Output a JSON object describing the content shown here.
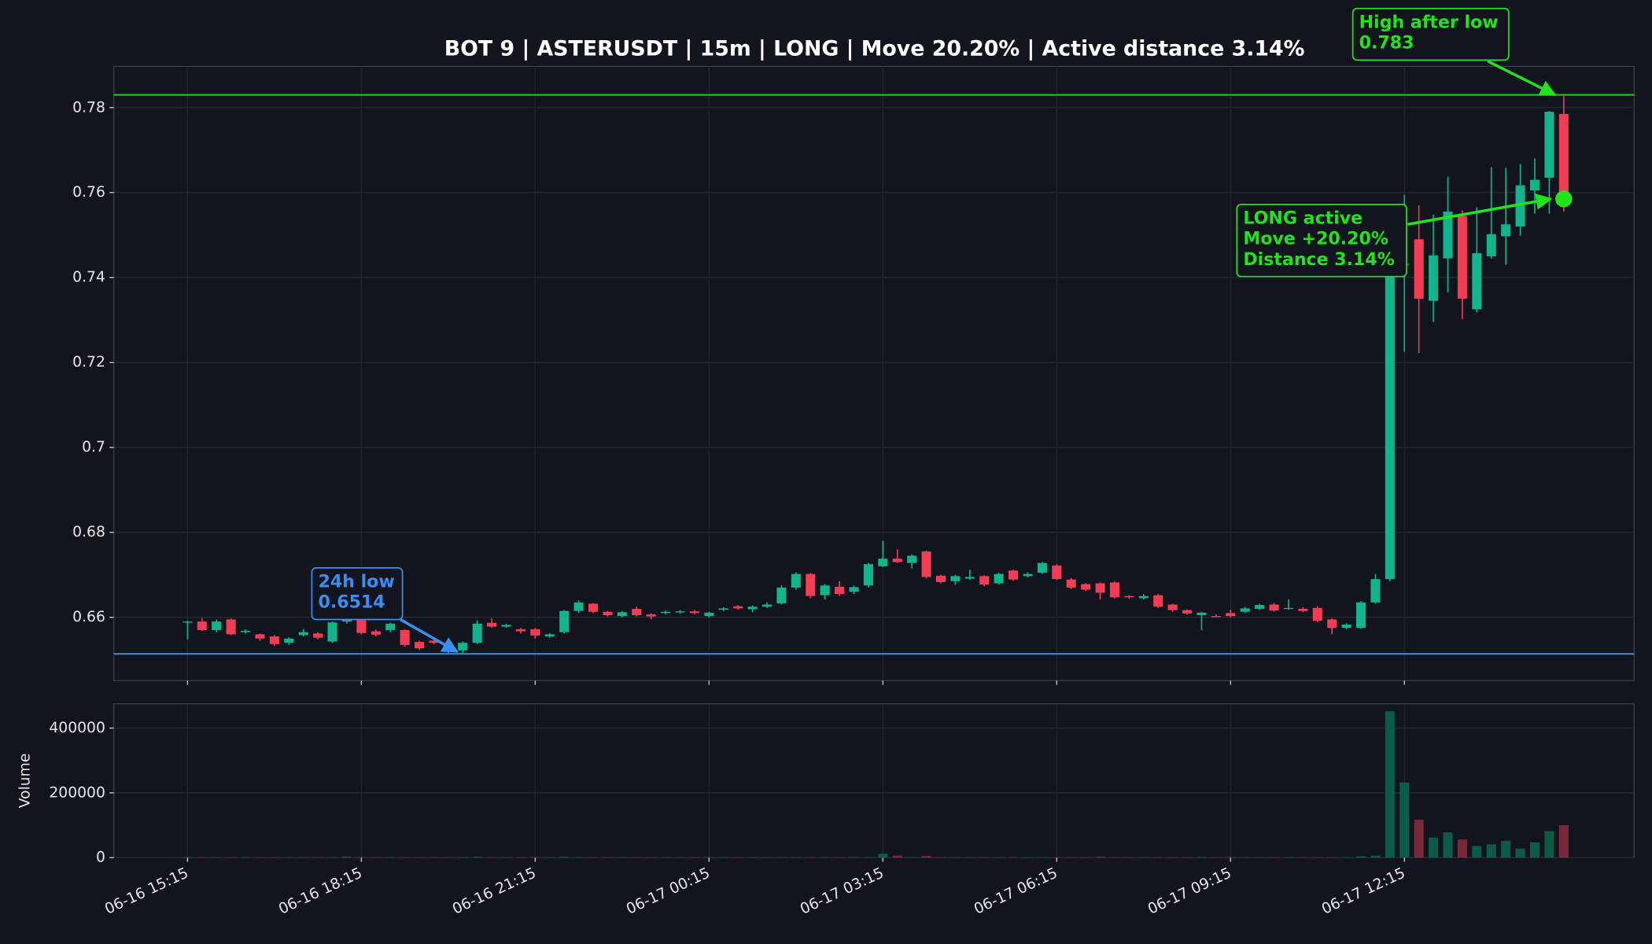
{
  "chart_data": {
    "type": "candlestick",
    "title": "BOT 9 | ASTERUSDT | 15m | LONG | Move 20.20% | Active distance 3.14%",
    "categories": [
      "06-16 15:15",
      null,
      null,
      null,
      null,
      null,
      null,
      null,
      null,
      null,
      null,
      null,
      "06-16 18:15",
      null,
      null,
      null,
      null,
      null,
      null,
      null,
      null,
      null,
      null,
      null,
      "06-16 21:15",
      null,
      null,
      null,
      null,
      null,
      null,
      null,
      null,
      null,
      null,
      null,
      "06-17 00:15",
      null,
      null,
      null,
      null,
      null,
      null,
      null,
      null,
      null,
      null,
      null,
      "06-17 03:15",
      null,
      null,
      null,
      null,
      null,
      null,
      null,
      null,
      null,
      null,
      null,
      "06-17 06:15",
      null,
      null,
      null,
      null,
      null,
      null,
      null,
      null,
      null,
      null,
      null,
      "06-17 09:15",
      null,
      null,
      null,
      null,
      null,
      null,
      null,
      null,
      null,
      null,
      null,
      "06-17 12:15",
      null,
      null,
      null,
      null,
      null,
      null,
      null,
      null,
      null,
      null,
      null
    ],
    "open": [
      0.659,
      0.659,
      0.657,
      0.6595,
      0.6565,
      0.656,
      0.6555,
      0.654,
      0.6558,
      0.6562,
      0.6543,
      0.659,
      0.66,
      0.6567,
      0.657,
      0.657,
      0.6542,
      0.6545,
      0.6537,
      0.6522,
      0.654,
      0.6587,
      0.6578,
      0.6572,
      0.6572,
      0.6555,
      0.6565,
      0.6615,
      0.6632,
      0.6613,
      0.6603,
      0.662,
      0.6607,
      0.661,
      0.6612,
      0.6614,
      0.6603,
      0.6618,
      0.6626,
      0.6619,
      0.6625,
      0.6633,
      0.667,
      0.6702,
      0.6652,
      0.6672,
      0.666,
      0.6675,
      0.672,
      0.6738,
      0.6728,
      0.6755,
      0.6698,
      0.6685,
      0.6691,
      0.6697,
      0.668,
      0.671,
      0.6697,
      0.6705,
      0.6722,
      0.6689,
      0.6678,
      0.668,
      0.6682,
      0.665,
      0.6645,
      0.6652,
      0.663,
      0.6617,
      0.6605,
      0.6603,
      0.661,
      0.6613,
      0.662,
      0.663,
      0.662,
      0.662,
      0.6622,
      0.6595,
      0.6575,
      0.6575,
      0.6635,
      0.669,
      0.743,
      0.749,
      0.7345,
      0.7445,
      0.7545,
      0.7325,
      0.745,
      0.7497,
      0.752,
      0.7605,
      0.7635,
      0.7785
    ],
    "high": [
      0.6592,
      0.6598,
      0.6595,
      0.6597,
      0.6572,
      0.6562,
      0.6558,
      0.6553,
      0.6572,
      0.6565,
      0.659,
      0.6601,
      0.6602,
      0.6571,
      0.6587,
      0.6572,
      0.6545,
      0.655,
      0.6538,
      0.6543,
      0.6593,
      0.6598,
      0.6585,
      0.6575,
      0.6575,
      0.6563,
      0.6617,
      0.664,
      0.6634,
      0.6615,
      0.6615,
      0.6625,
      0.6609,
      0.6616,
      0.6617,
      0.6617,
      0.6613,
      0.6624,
      0.6629,
      0.6628,
      0.6635,
      0.6675,
      0.6706,
      0.6704,
      0.6678,
      0.6685,
      0.6675,
      0.6728,
      0.678,
      0.676,
      0.6748,
      0.6757,
      0.67,
      0.67,
      0.6712,
      0.6699,
      0.6705,
      0.6712,
      0.6706,
      0.673,
      0.6725,
      0.6692,
      0.668,
      0.6682,
      0.6685,
      0.6652,
      0.6655,
      0.6655,
      0.6632,
      0.6619,
      0.6613,
      0.6607,
      0.6618,
      0.6625,
      0.6632,
      0.6634,
      0.6642,
      0.6624,
      0.6626,
      0.6597,
      0.6586,
      0.6638,
      0.6702,
      0.749,
      0.7595,
      0.757,
      0.7548,
      0.7637,
      0.7558,
      0.7565,
      0.766,
      0.7658,
      0.7667,
      0.768,
      0.7792,
      0.783
    ],
    "low": [
      0.6548,
      0.6568,
      0.6565,
      0.6558,
      0.6562,
      0.6545,
      0.6532,
      0.6535,
      0.6555,
      0.6548,
      0.654,
      0.6585,
      0.656,
      0.6555,
      0.6565,
      0.6531,
      0.6523,
      0.6536,
      0.6514,
      0.6516,
      0.6537,
      0.6575,
      0.6575,
      0.6562,
      0.655,
      0.6552,
      0.6562,
      0.661,
      0.661,
      0.6602,
      0.66,
      0.6602,
      0.6595,
      0.6607,
      0.6609,
      0.6607,
      0.66,
      0.6615,
      0.6618,
      0.6612,
      0.6622,
      0.663,
      0.6665,
      0.6645,
      0.6642,
      0.665,
      0.6655,
      0.667,
      0.6718,
      0.6728,
      0.6715,
      0.6692,
      0.668,
      0.6677,
      0.6688,
      0.6673,
      0.6677,
      0.6686,
      0.6694,
      0.6702,
      0.6688,
      0.6667,
      0.6662,
      0.6642,
      0.6644,
      0.6644,
      0.6642,
      0.6622,
      0.6613,
      0.6606,
      0.657,
      0.66,
      0.66,
      0.661,
      0.6617,
      0.6613,
      0.6618,
      0.6612,
      0.6589,
      0.656,
      0.6572,
      0.6573,
      0.6632,
      0.6685,
      0.7225,
      0.7222,
      0.7295,
      0.7365,
      0.7302,
      0.7318,
      0.7445,
      0.743,
      0.7498,
      0.755,
      0.755,
      0.7555
    ],
    "close": [
      0.659,
      0.657,
      0.659,
      0.656,
      0.6568,
      0.655,
      0.6537,
      0.655,
      0.6565,
      0.6552,
      0.6588,
      0.6597,
      0.6563,
      0.6559,
      0.6585,
      0.6535,
      0.6527,
      0.654,
      0.652,
      0.654,
      0.6585,
      0.6578,
      0.6582,
      0.6567,
      0.6557,
      0.656,
      0.6615,
      0.6635,
      0.6613,
      0.6605,
      0.6612,
      0.6605,
      0.6602,
      0.6613,
      0.6614,
      0.661,
      0.6611,
      0.6621,
      0.6621,
      0.6625,
      0.663,
      0.667,
      0.6702,
      0.665,
      0.6675,
      0.6655,
      0.6671,
      0.6725,
      0.6738,
      0.673,
      0.6745,
      0.6695,
      0.6683,
      0.6697,
      0.6695,
      0.6677,
      0.6702,
      0.6689,
      0.6702,
      0.6728,
      0.669,
      0.667,
      0.6665,
      0.6658,
      0.6647,
      0.6647,
      0.665,
      0.6625,
      0.6617,
      0.6609,
      0.6611,
      0.6602,
      0.6603,
      0.6621,
      0.6629,
      0.6616,
      0.6622,
      0.6615,
      0.6592,
      0.6575,
      0.6583,
      0.6635,
      0.669,
      0.7425,
      0.7432,
      0.735,
      0.7452,
      0.7555,
      0.735,
      0.7457,
      0.7502,
      0.7525,
      0.7617,
      0.763,
      0.779,
      0.7585
    ],
    "volume": [
      1500,
      1500,
      1500,
      1500,
      1500,
      1500,
      1500,
      1500,
      1500,
      1500,
      1500,
      3000,
      1500,
      1500,
      1500,
      1500,
      1500,
      1500,
      1500,
      1500,
      2500,
      1500,
      1500,
      1500,
      1500,
      1500,
      2500,
      1500,
      1500,
      1500,
      1500,
      1500,
      1500,
      1500,
      1500,
      1500,
      1500,
      1500,
      1500,
      1500,
      1500,
      1500,
      1500,
      1500,
      1500,
      1500,
      2000,
      1500,
      12000,
      6000,
      1500,
      5000,
      1500,
      1500,
      1500,
      1500,
      1500,
      1500,
      1500,
      1500,
      1500,
      1500,
      1500,
      3000,
      1500,
      1500,
      1500,
      1500,
      1500,
      1500,
      2000,
      1500,
      1500,
      1500,
      1500,
      1500,
      1500,
      1500,
      1500,
      1500,
      1500,
      4000,
      6000,
      452000,
      232000,
      117000,
      62000,
      78000,
      56000,
      36000,
      41000,
      52000,
      28000,
      47000,
      82000,
      100000
    ],
    "up_color": "#12b48c",
    "down_color": "#f23d55",
    "volume_up_color": "#0e5a48",
    "volume_down_color": "#7a2836",
    "ylim": [
      0.6451,
      0.7897
    ],
    "yticks": [
      0.66,
      0.68,
      0.7,
      0.72,
      0.74,
      0.76,
      0.78
    ],
    "volume_label": "Volume",
    "volume_ylim": [
      0,
      475000
    ],
    "volume_yticks": [
      0,
      200000,
      400000
    ],
    "grid": true,
    "hlines": [
      {
        "value": 0.783,
        "color": "#1fc41a"
      },
      {
        "value": 0.6514,
        "color": "#3a86d8"
      }
    ],
    "annotations": [
      {
        "lines": [
          "24h low",
          "0.6514"
        ],
        "color": "#3a8ef0"
      },
      {
        "lines": [
          "High after low",
          "0.783"
        ],
        "color": "#22e31c"
      },
      {
        "lines": [
          "LONG active",
          "Move +20.20%",
          "Distance 3.14%"
        ],
        "color": "#22e31c"
      }
    ]
  }
}
